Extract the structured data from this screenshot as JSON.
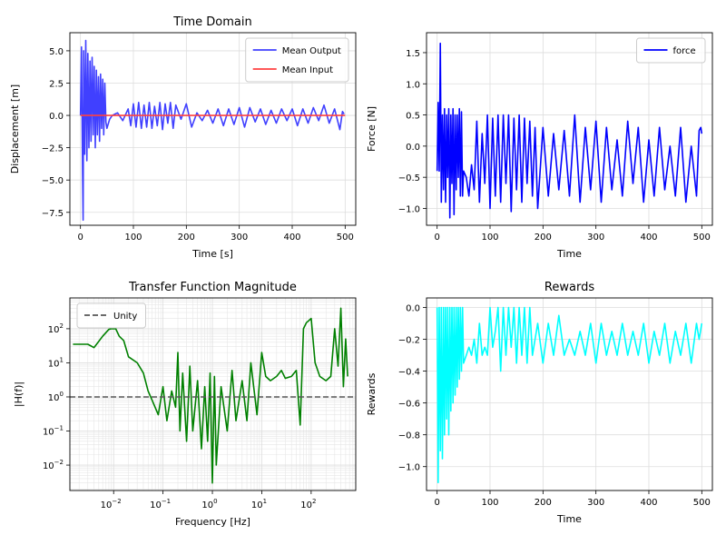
{
  "chart_data": [
    {
      "id": "time",
      "type": "line",
      "title": "Time Domain",
      "xlabel": "Time [s]",
      "ylabel": "Displacement [m]",
      "xlim": [
        -20,
        520
      ],
      "ylim": [
        -8.5,
        6.4
      ],
      "xticks": [
        0,
        100,
        200,
        300,
        400,
        500
      ],
      "yticks": [
        -7.5,
        -5.0,
        -2.5,
        0.0,
        2.5,
        5.0
      ],
      "ytick_labels": [
        "−7.5",
        "−5.0",
        "−2.5",
        "0.0",
        "2.5",
        "5.0"
      ],
      "grid": true,
      "legend": "top-right",
      "series": [
        {
          "name": "Mean Output",
          "color": "#4040ff",
          "x": [
            0,
            2,
            4,
            5,
            6,
            8,
            10,
            12,
            14,
            16,
            18,
            20,
            22,
            24,
            26,
            28,
            30,
            32,
            34,
            36,
            38,
            40,
            42,
            44,
            46,
            48,
            50,
            55,
            60,
            70,
            80,
            90,
            95,
            100,
            105,
            110,
            115,
            120,
            125,
            130,
            135,
            140,
            145,
            150,
            155,
            160,
            165,
            170,
            175,
            180,
            190,
            200,
            210,
            220,
            230,
            240,
            250,
            260,
            270,
            280,
            290,
            300,
            310,
            320,
            330,
            340,
            350,
            360,
            370,
            380,
            390,
            400,
            410,
            420,
            430,
            440,
            450,
            460,
            470,
            480,
            490,
            495,
            498
          ],
          "y": [
            0,
            5.3,
            -4.5,
            -8.1,
            5.0,
            -3.0,
            5.8,
            -3.5,
            4.8,
            -2.5,
            4.2,
            -2.0,
            4.5,
            -1.5,
            3.8,
            -2.5,
            3.5,
            -1.5,
            3.0,
            -2.0,
            3.2,
            -1.0,
            2.8,
            -1.5,
            2.5,
            -0.5,
            -1.0,
            -0.3,
            0,
            0.2,
            -0.4,
            0.5,
            -0.8,
            0.9,
            -0.9,
            1.0,
            -1.0,
            0.8,
            -0.9,
            1.0,
            -1.0,
            0.7,
            -0.8,
            1.0,
            -1.1,
            0.9,
            -0.6,
            1.0,
            -1.0,
            0.8,
            -0.3,
            0.9,
            -0.9,
            0.2,
            -0.4,
            0.4,
            -0.6,
            0.5,
            -0.8,
            0.5,
            -0.7,
            0.6,
            -0.9,
            0.6,
            -0.5,
            0.5,
            -0.7,
            0.4,
            -0.6,
            0.5,
            -0.4,
            0.5,
            -0.8,
            0.5,
            -0.6,
            0.6,
            -0.4,
            0.8,
            -0.6,
            0.5,
            -1.1,
            0.3,
            0.1
          ]
        },
        {
          "name": "Mean Input",
          "color": "#ff4040",
          "x": [
            0,
            500
          ],
          "y": [
            0,
            0
          ]
        }
      ]
    },
    {
      "id": "force",
      "type": "line",
      "title": "",
      "xlabel": "Time",
      "ylabel": "Force [N]",
      "xlim": [
        -20,
        520
      ],
      "ylim": [
        -1.27,
        1.82
      ],
      "xticks": [
        0,
        100,
        200,
        300,
        400,
        500
      ],
      "yticks": [
        -1.0,
        -0.5,
        0.0,
        0.5,
        1.0,
        1.5
      ],
      "ytick_labels": [
        "−1.0",
        "−0.5",
        "0.0",
        "0.5",
        "1.0",
        "1.5"
      ],
      "grid": true,
      "legend": "top-right",
      "series": [
        {
          "name": "force",
          "color": "#0000ff",
          "x": [
            0,
            2,
            4,
            6,
            8,
            10,
            12,
            14,
            16,
            18,
            20,
            22,
            24,
            26,
            28,
            30,
            32,
            34,
            36,
            38,
            40,
            42,
            44,
            46,
            48,
            50,
            55,
            60,
            65,
            70,
            75,
            80,
            85,
            90,
            95,
            100,
            105,
            110,
            115,
            120,
            125,
            130,
            135,
            140,
            145,
            150,
            155,
            160,
            165,
            170,
            175,
            180,
            185,
            190,
            200,
            210,
            220,
            230,
            240,
            250,
            260,
            270,
            280,
            290,
            300,
            310,
            320,
            330,
            340,
            350,
            360,
            370,
            380,
            390,
            400,
            410,
            420,
            430,
            440,
            450,
            460,
            470,
            480,
            490,
            495,
            498,
            500
          ],
          "y": [
            -0.4,
            0.7,
            -0.4,
            1.65,
            -0.9,
            0.5,
            -0.7,
            0.6,
            -0.9,
            0.5,
            -0.5,
            0.6,
            -1.15,
            0.5,
            -0.6,
            0.6,
            -1.1,
            0.5,
            -0.7,
            0.5,
            -0.5,
            0.6,
            -0.8,
            0.55,
            -0.8,
            -0.4,
            -0.5,
            -0.8,
            -0.3,
            -0.7,
            0.4,
            -0.9,
            0.2,
            -0.6,
            0.5,
            -1.0,
            0.45,
            -0.8,
            0.5,
            -0.9,
            0.5,
            -0.6,
            0.5,
            -1.05,
            0.45,
            -0.7,
            0.5,
            -0.9,
            0.45,
            -0.6,
            0.4,
            -0.8,
            0.3,
            -1.0,
            0.3,
            -0.8,
            0.2,
            -0.7,
            0.25,
            -0.8,
            0.5,
            -0.9,
            0.3,
            -0.7,
            0.4,
            -0.9,
            0.3,
            -0.7,
            0.1,
            -0.8,
            0.4,
            -0.6,
            0.3,
            -0.9,
            0.1,
            -0.8,
            0.3,
            -0.7,
            0.0,
            -0.8,
            0.3,
            -0.9,
            0.0,
            -0.8,
            0.25,
            0.3,
            0.2
          ]
        }
      ]
    },
    {
      "id": "tf",
      "type": "line",
      "title": "Transfer Function Magnitude",
      "xlabel": "Frequency [Hz]",
      "ylabel": "|H(f)|",
      "xscale": "log",
      "yscale": "log",
      "xlim": [
        0.0013,
        800
      ],
      "ylim": [
        0.0018,
        800
      ],
      "xticks": [
        0.01,
        0.1,
        1,
        10,
        100
      ],
      "xtick_labels": [
        "10",
        "10",
        "10",
        "10",
        "10"
      ],
      "xtick_exponents": [
        "−2",
        "−1",
        "0",
        "1",
        "2"
      ],
      "yticks": [
        0.01,
        0.1,
        1,
        10,
        100
      ],
      "ytick_labels": [
        "10",
        "10",
        "10",
        "10",
        "10"
      ],
      "ytick_exponents": [
        "−2",
        "−1",
        "0",
        "1",
        "2"
      ],
      "grid": true,
      "legend": "top-left",
      "series": [
        {
          "name": "",
          "color": "#008000",
          "x": [
            0.0015,
            0.003,
            0.004,
            0.006,
            0.008,
            0.009,
            0.011,
            0.013,
            0.016,
            0.02,
            0.03,
            0.04,
            0.05,
            0.06,
            0.08,
            0.1,
            0.12,
            0.15,
            0.18,
            0.2,
            0.22,
            0.25,
            0.3,
            0.35,
            0.4,
            0.5,
            0.6,
            0.7,
            0.8,
            0.9,
            1.0,
            1.1,
            1.2,
            1.5,
            2,
            2.5,
            3,
            4,
            5,
            6,
            8,
            10,
            12,
            15,
            20,
            25,
            30,
            40,
            50,
            60,
            70,
            80,
            100,
            120,
            150,
            200,
            250,
            300,
            350,
            400,
            450,
            500,
            550
          ],
          "y": [
            35,
            35,
            28,
            60,
            95,
            100,
            100,
            60,
            45,
            15,
            10,
            5,
            1.5,
            0.8,
            0.3,
            2.0,
            0.2,
            1.5,
            0.5,
            20,
            0.1,
            5,
            0.05,
            8,
            0.1,
            3,
            0.03,
            2,
            0.05,
            5,
            0.003,
            4,
            0.01,
            2,
            0.1,
            6,
            0.2,
            3,
            0.2,
            10,
            0.3,
            20,
            4,
            3,
            4,
            6,
            3.5,
            4,
            6,
            0.15,
            100,
            150,
            200,
            10,
            4,
            3,
            4,
            100,
            8,
            400,
            2,
            50,
            4
          ]
        },
        {
          "name": "Unity",
          "color": "#555555",
          "dashed": true,
          "x": [
            0.0013,
            800
          ],
          "y": [
            1,
            1
          ]
        }
      ]
    },
    {
      "id": "rewards",
      "type": "line",
      "title": "Rewards",
      "xlabel": "Time",
      "ylabel": "Rewards",
      "xlim": [
        -20,
        520
      ],
      "ylim": [
        -1.15,
        0.06
      ],
      "xticks": [
        0,
        100,
        200,
        300,
        400,
        500
      ],
      "yticks": [
        -1.0,
        -0.8,
        -0.6,
        -0.4,
        -0.2,
        0.0
      ],
      "ytick_labels": [
        "−1.0",
        "−0.8",
        "−0.6",
        "−0.4",
        "−0.2",
        "0.0"
      ],
      "grid": true,
      "legend": "none",
      "series": [
        {
          "name": "",
          "color": "#00ffff",
          "x": [
            0,
            2,
            4,
            6,
            8,
            10,
            12,
            14,
            16,
            18,
            20,
            22,
            24,
            26,
            28,
            30,
            32,
            34,
            36,
            38,
            40,
            42,
            44,
            46,
            48,
            50,
            55,
            60,
            65,
            70,
            75,
            80,
            85,
            90,
            95,
            100,
            105,
            110,
            115,
            120,
            125,
            130,
            135,
            140,
            145,
            150,
            155,
            160,
            165,
            170,
            175,
            180,
            190,
            200,
            210,
            220,
            230,
            240,
            250,
            260,
            270,
            280,
            290,
            300,
            310,
            320,
            330,
            340,
            350,
            360,
            370,
            380,
            390,
            400,
            410,
            420,
            430,
            440,
            450,
            460,
            470,
            480,
            490,
            495,
            500
          ],
          "y": [
            0,
            -1.1,
            0,
            -0.9,
            0,
            -0.95,
            0,
            -0.8,
            0,
            -0.7,
            0,
            -0.8,
            0,
            -0.65,
            0,
            -0.6,
            0,
            -0.55,
            0,
            -0.5,
            0,
            -0.45,
            0,
            -0.4,
            0,
            -0.35,
            -0.3,
            -0.25,
            -0.3,
            -0.2,
            -0.35,
            -0.1,
            -0.3,
            -0.25,
            -0.3,
            0,
            -0.25,
            -0.15,
            0,
            -0.4,
            0,
            -0.3,
            0,
            -0.25,
            0,
            -0.35,
            0,
            -0.3,
            0,
            -0.35,
            0,
            -0.3,
            -0.1,
            -0.35,
            -0.1,
            -0.3,
            -0.05,
            -0.3,
            -0.2,
            -0.3,
            -0.15,
            -0.3,
            -0.1,
            -0.35,
            -0.1,
            -0.3,
            -0.15,
            -0.3,
            -0.1,
            -0.3,
            -0.15,
            -0.3,
            -0.1,
            -0.35,
            -0.15,
            -0.3,
            -0.1,
            -0.35,
            -0.15,
            -0.3,
            -0.1,
            -0.35,
            -0.1,
            -0.2,
            -0.1
          ]
        }
      ]
    }
  ]
}
